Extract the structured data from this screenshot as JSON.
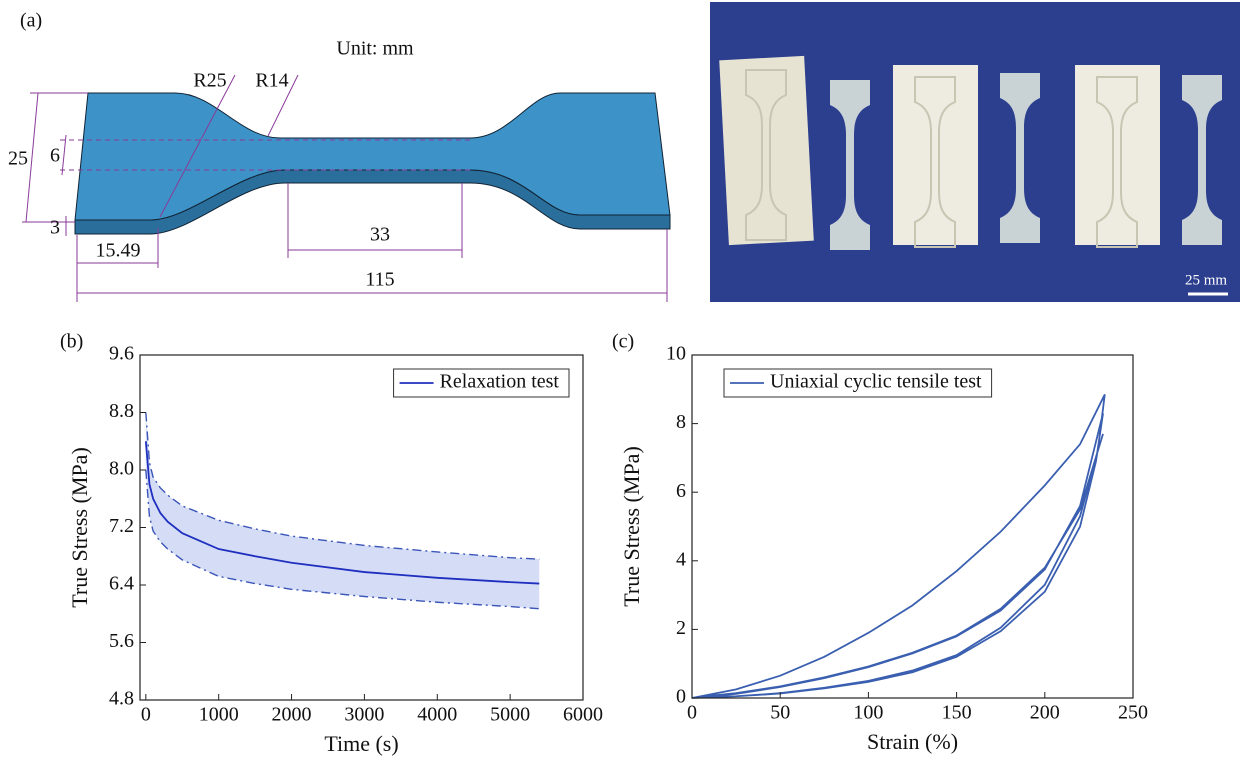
{
  "panel_a": {
    "label": "(a)",
    "unit": "Unit: mm",
    "r25": "R25",
    "r14": "R14",
    "width": "25",
    "gauge_width": "6",
    "thickness": "3",
    "grip_length": "15.49",
    "gauge_length": "33",
    "total_length": "115"
  },
  "photo": {
    "scale_label": "25 mm"
  },
  "chart_data": [
    {
      "type": "line",
      "label": "(b)",
      "x_label": "Time (s)",
      "y_label": "True Stress (MPa)",
      "x": [
        0,
        50,
        100,
        200,
        300,
        500,
        1000,
        1500,
        2000,
        3000,
        4000,
        5000,
        5400
      ],
      "series": [
        {
          "name": "Relaxation test",
          "color": "#1f2fbf",
          "values": [
            8.4,
            7.8,
            7.6,
            7.4,
            7.28,
            7.12,
            6.9,
            6.8,
            6.71,
            6.58,
            6.5,
            6.44,
            6.42
          ]
        },
        {
          "color": "#3b56b8",
          "dash": "dashdot",
          "values": [
            8.8,
            8.1,
            7.9,
            7.75,
            7.65,
            7.5,
            7.3,
            7.18,
            7.08,
            6.95,
            6.86,
            6.78,
            6.76
          ]
        },
        {
          "color": "#3b56b8",
          "dash": "dashdot",
          "values": [
            8.0,
            7.35,
            7.15,
            7.0,
            6.9,
            6.75,
            6.52,
            6.42,
            6.34,
            6.24,
            6.16,
            6.1,
            6.07
          ]
        }
      ],
      "band_color": "#d5ddf6",
      "xlim": [
        -80,
        6000
      ],
      "xticks": [
        0,
        1000,
        2000,
        3000,
        4000,
        5000,
        6000
      ],
      "ylim": [
        4.8,
        9.6
      ],
      "yticks": [
        4.8,
        5.6,
        6.4,
        7.2,
        {
          "value": 8,
          "label": "8.0"
        },
        8.8,
        9.6
      ],
      "legend": "upper right"
    },
    {
      "type": "line",
      "label": "(c)",
      "x_label": "Strain (%)",
      "y_label": "True Stress (MPa)",
      "x": [
        0,
        25,
        50,
        75,
        100,
        125,
        150,
        175,
        200,
        220,
        234,
        230,
        220,
        200,
        175,
        150,
        125,
        100,
        75,
        50,
        25,
        0,
        25,
        50,
        75,
        100,
        125,
        150,
        175,
        200,
        220,
        233,
        229,
        220,
        200,
        175,
        150,
        125,
        100,
        75,
        50,
        25,
        2,
        25,
        50,
        75,
        100,
        125,
        150,
        175,
        200,
        220,
        233
      ],
      "series": [
        {
          "name": "Uniaxial cyclic tensile test",
          "color": "#3a5fb0",
          "values": [
            0,
            0.25,
            0.65,
            1.2,
            1.9,
            2.7,
            3.7,
            4.85,
            6.2,
            7.4,
            8.85,
            7.2,
            5.3,
            3.3,
            2.05,
            1.25,
            0.8,
            0.5,
            0.3,
            0.14,
            0.05,
            0,
            0.12,
            0.32,
            0.58,
            0.9,
            1.3,
            1.8,
            2.55,
            3.75,
            5.6,
            8.3,
            6.9,
            5.0,
            3.1,
            1.95,
            1.2,
            0.75,
            0.47,
            0.28,
            0.13,
            0.05,
            0.02,
            0.14,
            0.34,
            0.6,
            0.92,
            1.32,
            1.82,
            2.6,
            3.8,
            5.5,
            7.7
          ]
        }
      ],
      "xlim": [
        0,
        250
      ],
      "xticks": [
        0,
        50,
        100,
        150,
        200,
        250
      ],
      "ylim": [
        0,
        10
      ],
      "yticks": [
        0,
        2,
        4,
        6,
        8,
        10
      ],
      "legend": "upper left"
    }
  ]
}
